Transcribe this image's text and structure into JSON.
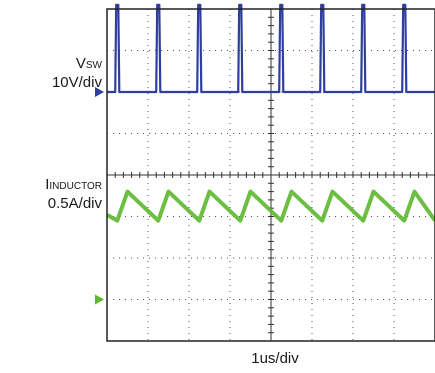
{
  "chart_data": {
    "type": "line",
    "title": "",
    "xlabel": "1us/div",
    "grid": true,
    "divisions": {
      "x": 8,
      "y": 8
    },
    "channels": [
      {
        "symbol": "V",
        "subscript": "SW",
        "scale": "10V/div",
        "color": "#2e3f9e",
        "units_per_div": 10,
        "ground_offset_div": 2.0,
        "low_level_V": 0,
        "high_level_V": 21,
        "pulse_starts_us": [
          0.2,
          1.2,
          2.2,
          3.2,
          4.2,
          5.2,
          6.2,
          7.2
        ],
        "pulse_width_us": 0.1
      },
      {
        "symbol": "I",
        "subscript": "INDUCTOR",
        "scale": "0.5A/div",
        "color": "#5cb82e",
        "units_per_div": 0.5,
        "ground_offset_div": 7.0,
        "valley_A": 0.95,
        "peak_A": 1.3,
        "valley_times_us": [
          0.25,
          1.25,
          2.25,
          3.25,
          4.25,
          5.25,
          6.25,
          7.25
        ],
        "period_us": 1.0
      }
    ]
  },
  "labels": {
    "ch1_symbol": "V",
    "ch1_sub": "SW",
    "ch1_scale": "10V/div",
    "ch2_symbol": "I",
    "ch2_sub": "INDUCTOR",
    "ch2_scale": "0.5A/div",
    "time_scale": "1us/div"
  }
}
